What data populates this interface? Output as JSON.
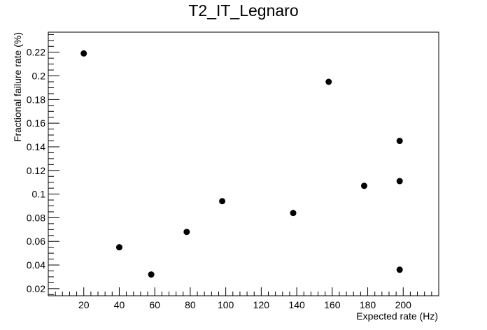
{
  "chart_data": {
    "type": "scatter",
    "title": "T2_IT_Legnaro",
    "xlabel": "Expected rate (Hz)",
    "ylabel": "Fractional failure rate (%)",
    "xlim": [
      0,
      220
    ],
    "ylim": [
      0.014,
      0.237
    ],
    "x_ticks": [
      20,
      40,
      60,
      80,
      100,
      120,
      140,
      160,
      180,
      200
    ],
    "x_tick_labels": [
      "20",
      "40",
      "60",
      "80",
      "100",
      "120",
      "140",
      "160",
      "180",
      "200"
    ],
    "y_ticks": [
      0.02,
      0.04,
      0.06,
      0.08,
      0.1,
      0.12,
      0.14,
      0.16,
      0.18,
      0.2,
      0.22
    ],
    "y_tick_labels": [
      "0.02",
      "0.04",
      "0.06",
      "0.08",
      "0.1",
      "0.12",
      "0.14",
      "0.16",
      "0.18",
      "0.2",
      "0.22"
    ],
    "grid": false,
    "marker_color": "#000000",
    "points": [
      {
        "x": 20,
        "y": 0.219
      },
      {
        "x": 40,
        "y": 0.055
      },
      {
        "x": 58,
        "y": 0.032
      },
      {
        "x": 78,
        "y": 0.068
      },
      {
        "x": 98,
        "y": 0.094
      },
      {
        "x": 138,
        "y": 0.084
      },
      {
        "x": 158,
        "y": 0.195
      },
      {
        "x": 178,
        "y": 0.107
      },
      {
        "x": 198,
        "y": 0.145
      },
      {
        "x": 198,
        "y": 0.111
      },
      {
        "x": 198,
        "y": 0.036
      }
    ]
  }
}
